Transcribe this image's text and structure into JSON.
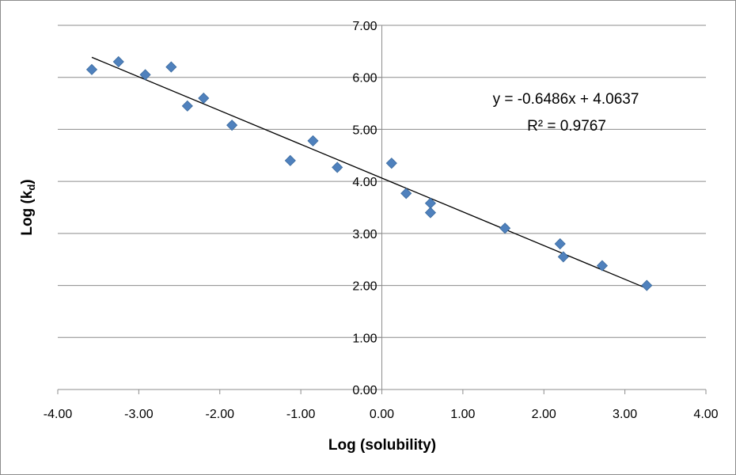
{
  "chart_data": {
    "type": "scatter",
    "xlabel": "Log (solubility)",
    "ylabel_main": "Log (k",
    "ylabel_sub": "d",
    "ylabel_end": ")",
    "xlim": [
      -4,
      4
    ],
    "ylim": [
      0,
      7
    ],
    "x_ticks": [
      "-4.00",
      "-3.00",
      "-2.00",
      "-1.00",
      "0.00",
      "1.00",
      "2.00",
      "3.00",
      "4.00"
    ],
    "y_ticks": [
      "0.00",
      "1.00",
      "2.00",
      "3.00",
      "4.00",
      "5.00",
      "6.00",
      "7.00"
    ],
    "grid": "horizontal",
    "marker_color": "#4f81bd",
    "marker_stroke": "#3a6a9e",
    "series": [
      {
        "points": [
          [
            -3.58,
            6.15
          ],
          [
            -3.25,
            6.3
          ],
          [
            -2.92,
            6.05
          ],
          [
            -2.6,
            6.2
          ],
          [
            -2.4,
            5.45
          ],
          [
            -2.2,
            5.6
          ],
          [
            -1.85,
            5.08
          ],
          [
            -1.13,
            4.4
          ],
          [
            -0.85,
            4.78
          ],
          [
            -0.55,
            4.27
          ],
          [
            0.12,
            4.35
          ],
          [
            0.3,
            3.77
          ],
          [
            0.6,
            3.58
          ],
          [
            0.6,
            3.4
          ],
          [
            1.52,
            3.1
          ],
          [
            2.2,
            2.8
          ],
          [
            2.24,
            2.55
          ],
          [
            2.72,
            2.38
          ],
          [
            3.27,
            2.0
          ]
        ]
      }
    ],
    "trendline": {
      "slope": -0.6486,
      "intercept": 4.0637,
      "x_range": [
        -3.58,
        3.27
      ],
      "equation": "y = -0.6486x + 4.0637",
      "r_squared": "R² = 0.9767"
    }
  }
}
